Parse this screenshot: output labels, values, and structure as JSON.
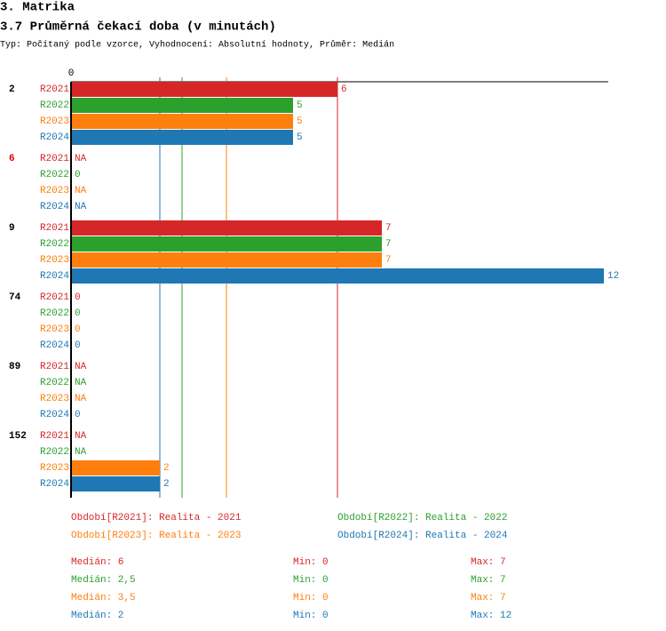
{
  "heading": "3. Matrika",
  "chart_data": {
    "type": "bar",
    "orientation": "horizontal",
    "title": "3.7 Průměrná čekací doba (v minutách)",
    "subtitle": "Typ: Počítaný podle vzorce, Vyhodnocení: Absolutní hodnoty, Průměr: Medián",
    "categories": [
      "2",
      "6",
      "9",
      "74",
      "89",
      "152"
    ],
    "highlight_index": 1,
    "highlight_color": "#e00000",
    "xlim": [
      0,
      12.1
    ],
    "xticks": [
      0
    ],
    "series": [
      {
        "name": "R2021",
        "legend": "Období[R2021]: Realita - 2021",
        "color": "#d62728",
        "values": [
          6,
          null,
          7,
          0,
          null,
          null
        ],
        "value_labels": [
          "6",
          "NA",
          "7",
          "0",
          "NA",
          "NA"
        ],
        "stats": {
          "median": {
            "value": 6,
            "label": "Medián: 6"
          },
          "min": {
            "value": 0,
            "label": "Min: 0"
          },
          "max": {
            "value": 7,
            "label": "Max: 7"
          }
        }
      },
      {
        "name": "R2022",
        "legend": "Období[R2022]: Realita - 2022",
        "color": "#2ca02c",
        "values": [
          5,
          0,
          7,
          0,
          null,
          null
        ],
        "value_labels": [
          "5",
          "0",
          "7",
          "0",
          "NA",
          "NA"
        ],
        "stats": {
          "median": {
            "value": 2.5,
            "label": "Medián: 2,5"
          },
          "min": {
            "value": 0,
            "label": "Min: 0"
          },
          "max": {
            "value": 7,
            "label": "Max: 7"
          }
        }
      },
      {
        "name": "R2023",
        "legend": "Období[R2023]: Realita - 2023",
        "color": "#ff7f0e",
        "values": [
          5,
          null,
          7,
          0,
          null,
          2
        ],
        "value_labels": [
          "5",
          "NA",
          "7",
          "0",
          "NA",
          "2"
        ],
        "stats": {
          "median": {
            "value": 3.5,
            "label": "Medián: 3,5"
          },
          "min": {
            "value": 0,
            "label": "Min: 0"
          },
          "max": {
            "value": 7,
            "label": "Max: 7"
          }
        }
      },
      {
        "name": "R2024",
        "legend": "Období[R2024]: Realita - 2024",
        "color": "#1f77b4",
        "values": [
          5,
          null,
          12,
          0,
          0,
          2
        ],
        "value_labels": [
          "5",
          "NA",
          "12",
          "0",
          "0",
          "2"
        ],
        "stats": {
          "median": {
            "value": 2,
            "label": "Medián: 2"
          },
          "min": {
            "value": 0,
            "label": "Min: 0"
          },
          "max": {
            "value": 12,
            "label": "Max: 12"
          }
        }
      }
    ]
  }
}
